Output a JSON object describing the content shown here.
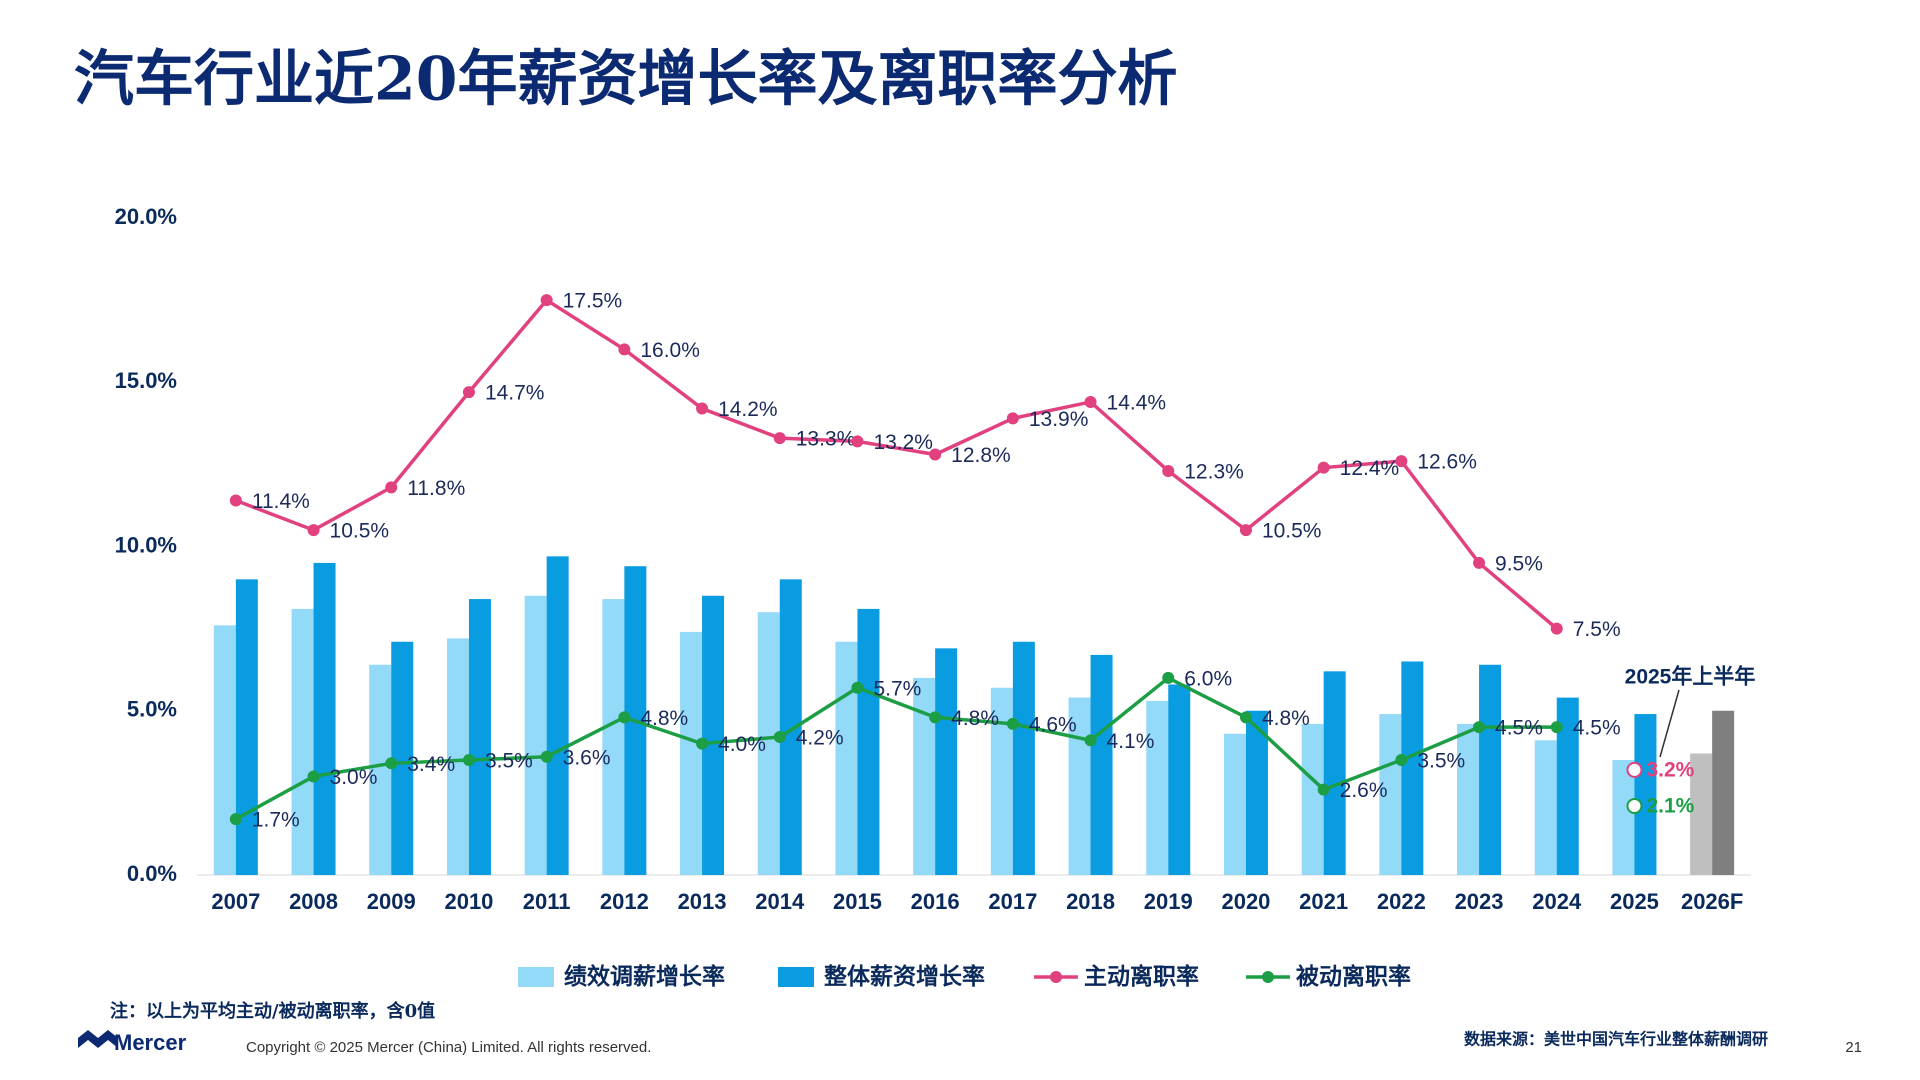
{
  "chart_data": {
    "type": "bar-line",
    "title": "汽车行业近20年薪资增长率及离职率分析",
    "categories": [
      "2007",
      "2008",
      "2009",
      "2010",
      "2011",
      "2012",
      "2013",
      "2014",
      "2015",
      "2016",
      "2017",
      "2018",
      "2019",
      "2020",
      "2021",
      "2022",
      "2023",
      "2024",
      "2025",
      "2026F"
    ],
    "ylim": [
      0,
      20
    ],
    "yticks": [
      {
        "value": 0,
        "label": "0.0%"
      },
      {
        "value": 5,
        "label": "5.0%"
      },
      {
        "value": 10,
        "label": "10.0%"
      },
      {
        "value": 15,
        "label": "15.0%"
      },
      {
        "value": 20,
        "label": "20.0%"
      }
    ],
    "grid": false,
    "legend": "bottom",
    "series": [
      {
        "name": "绩效调薪增长率",
        "type": "bar",
        "color": "#93d9f8",
        "colors": [
          "#93d9f8",
          "#93d9f8",
          "#93d9f8",
          "#93d9f8",
          "#93d9f8",
          "#93d9f8",
          "#93d9f8",
          "#93d9f8",
          "#93d9f8",
          "#93d9f8",
          "#93d9f8",
          "#93d9f8",
          "#93d9f8",
          "#93d9f8",
          "#93d9f8",
          "#93d9f8",
          "#93d9f8",
          "#93d9f8",
          "#93d9f8",
          "#bfbfbf"
        ],
        "values": [
          7.6,
          8.1,
          6.4,
          7.2,
          8.5,
          8.4,
          7.4,
          8.0,
          7.1,
          6.0,
          5.7,
          5.4,
          5.3,
          4.3,
          4.6,
          4.9,
          4.6,
          4.1,
          3.5,
          3.7
        ]
      },
      {
        "name": "整体薪资增长率",
        "type": "bar",
        "color": "#0a9ce0",
        "colors": [
          "#0a9ce0",
          "#0a9ce0",
          "#0a9ce0",
          "#0a9ce0",
          "#0a9ce0",
          "#0a9ce0",
          "#0a9ce0",
          "#0a9ce0",
          "#0a9ce0",
          "#0a9ce0",
          "#0a9ce0",
          "#0a9ce0",
          "#0a9ce0",
          "#0a9ce0",
          "#0a9ce0",
          "#0a9ce0",
          "#0a9ce0",
          "#0a9ce0",
          "#0a9ce0",
          "#7f7f7f"
        ],
        "values": [
          9.0,
          9.5,
          7.1,
          8.4,
          9.7,
          9.4,
          8.5,
          9.0,
          8.1,
          6.9,
          7.1,
          6.7,
          5.8,
          5.0,
          6.2,
          6.5,
          6.4,
          5.4,
          4.9,
          5.0
        ]
      },
      {
        "name": "主动离职率",
        "type": "line",
        "color": "#e2417f",
        "values": [
          11.4,
          10.5,
          11.8,
          14.7,
          17.5,
          16.0,
          14.2,
          13.3,
          13.2,
          12.8,
          13.9,
          14.4,
          12.3,
          10.5,
          12.4,
          12.6,
          9.5,
          7.5,
          null,
          null
        ],
        "value_labels": [
          "11.4%",
          "10.5%",
          "11.8%",
          "14.7%",
          "17.5%",
          "16.0%",
          "14.2%",
          "13.3%",
          "13.2%",
          "12.8%",
          "13.9%",
          "14.4%",
          "12.3%",
          "10.5%",
          "12.4%",
          "12.6%",
          "9.5%",
          "7.5%",
          null,
          null
        ],
        "h1_value": 3.2,
        "h1_label": "3.2%"
      },
      {
        "name": "被动离职率",
        "type": "line",
        "color": "#1c9e45",
        "values": [
          1.7,
          3.0,
          3.4,
          3.5,
          3.6,
          4.8,
          4.0,
          4.2,
          5.7,
          4.8,
          4.6,
          4.1,
          6.0,
          4.8,
          2.6,
          3.5,
          4.5,
          4.5,
          null,
          null
        ],
        "value_labels": [
          "1.7%",
          "3.0%",
          "3.4%",
          "3.5%",
          "3.6%",
          "4.8%",
          "4.0%",
          "4.2%",
          "5.7%",
          "4.8%",
          "4.6%",
          "4.1%",
          "6.0%",
          "4.8%",
          "2.6%",
          "3.5%",
          "4.5%",
          "4.5%",
          null,
          null
        ],
        "h1_value": 2.1,
        "h1_label": "2.1%"
      }
    ],
    "annotation": "2025年上半年",
    "note": "注：以上为平均主动/被动离职率，含0值",
    "source": "数据来源：美世中国汽车行业整体薪酬调研"
  },
  "footer": {
    "logo": "Mercer",
    "copyright": "Copyright © 2025 Mercer (China) Limited. All rights reserved.",
    "page": "21"
  }
}
